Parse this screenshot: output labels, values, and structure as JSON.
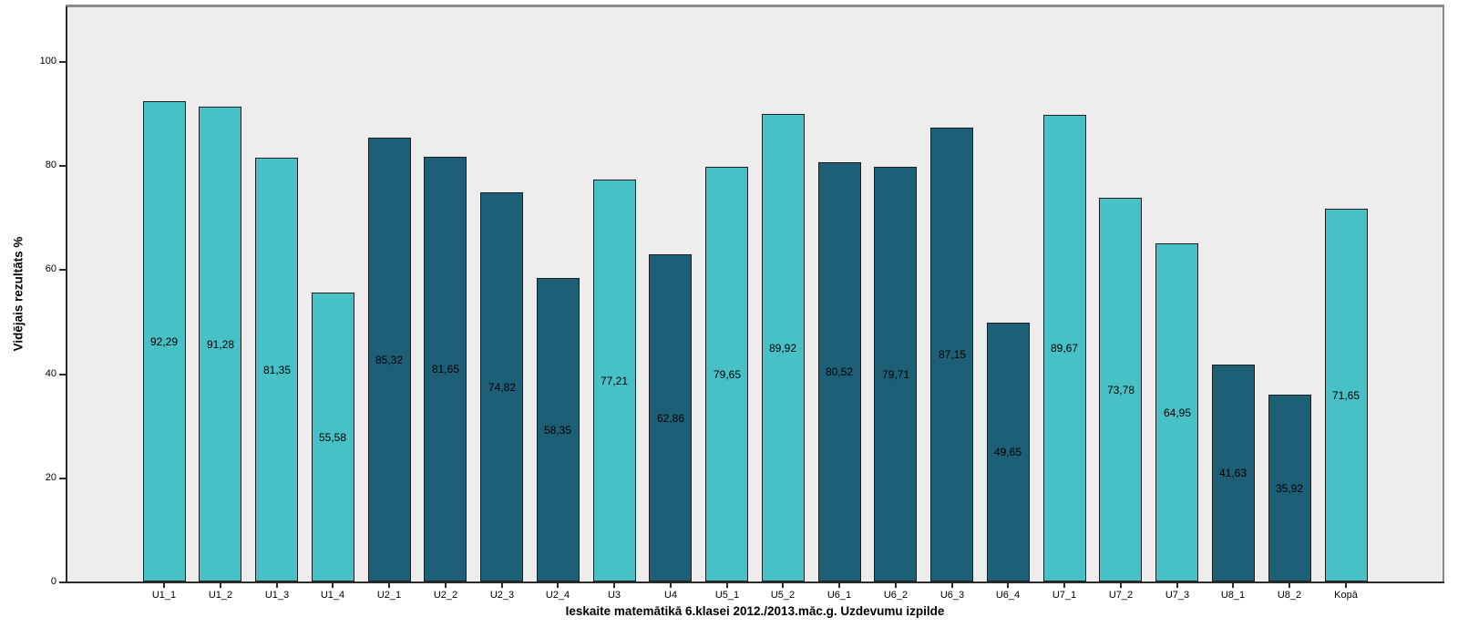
{
  "chart_data": {
    "type": "bar",
    "title": "",
    "xlabel": "Ieskaite matemātikā 6.klasei 2012./2013.māc.g. Uzdevumu izpilde",
    "ylabel": "Vidējais rezultāts %",
    "categories": [
      "U1_1",
      "U1_2",
      "U1_3",
      "U1_4",
      "U2_1",
      "U2_2",
      "U2_3",
      "U2_4",
      "U3",
      "U4",
      "U5_1",
      "U5_2",
      "U6_1",
      "U6_2",
      "U6_3",
      "U6_4",
      "U7_1",
      "U7_2",
      "U7_3",
      "U8_1",
      "U8_2",
      "Kopā"
    ],
    "values": [
      92.29,
      91.28,
      81.35,
      55.58,
      85.32,
      81.65,
      74.82,
      58.35,
      77.21,
      62.86,
      79.65,
      89.92,
      80.52,
      79.71,
      87.15,
      49.65,
      89.67,
      73.78,
      64.95,
      41.63,
      35.92,
      71.65
    ],
    "value_labels": [
      "92,29",
      "91,28",
      "81,35",
      "55,58",
      "85,32",
      "81,65",
      "74,82",
      "58,35",
      "77,21",
      "62,86",
      "79,65",
      "89,92",
      "80,52",
      "79,71",
      "87,15",
      "49,65",
      "89,67",
      "73,78",
      "64,95",
      "41,63",
      "35,92",
      "71,65"
    ],
    "bar_color_keys": [
      "light",
      "light",
      "light",
      "light",
      "dark",
      "dark",
      "dark",
      "dark",
      "light",
      "dark",
      "light",
      "light",
      "dark",
      "dark",
      "dark",
      "dark",
      "light",
      "light",
      "light",
      "dark",
      "dark",
      "light"
    ],
    "palette": {
      "light": "#47C1C6",
      "dark": "#1E5F78"
    },
    "plot_background": "#EDEDED",
    "bar_border_color": "#1F1F1F",
    "yticks": [
      0,
      20,
      40,
      60,
      80,
      100
    ],
    "ylim": [
      0,
      110.7
    ],
    "grid": false,
    "legend": null,
    "value_label_position": "center-of-bar"
  }
}
